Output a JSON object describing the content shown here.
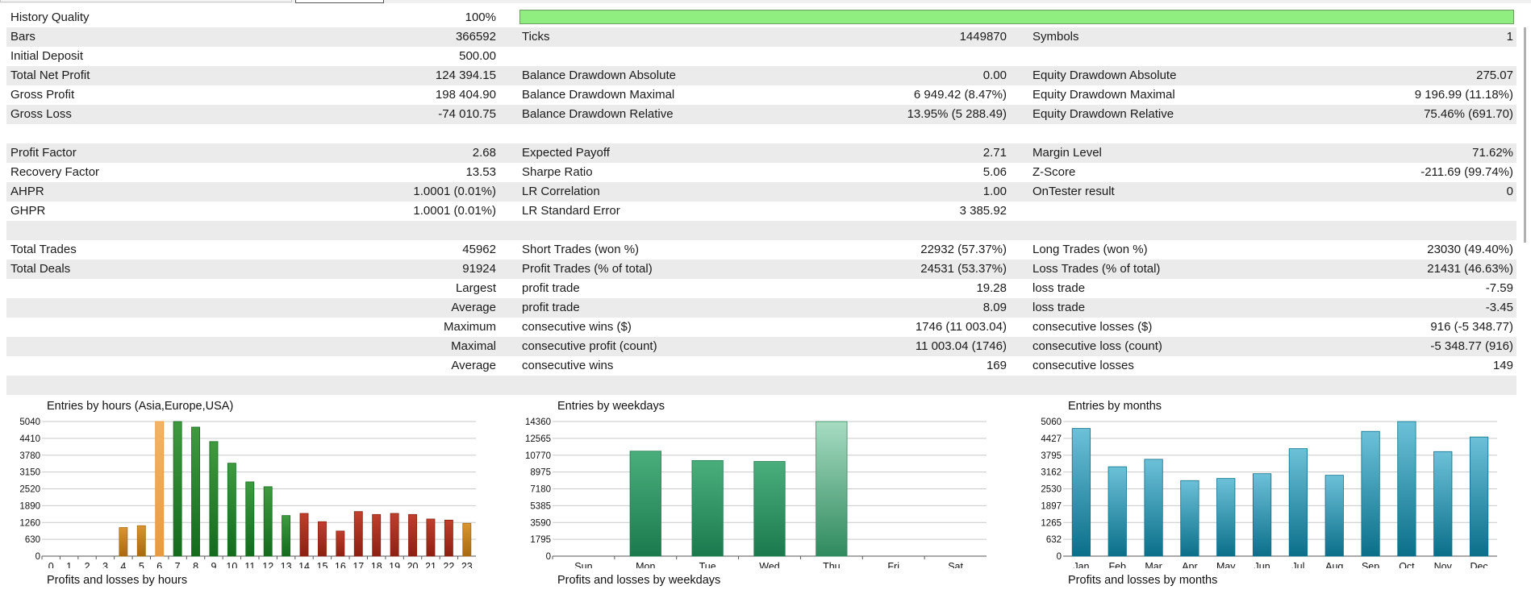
{
  "rows": [
    {
      "cells": [
        "History Quality",
        "100%",
        "",
        "",
        "",
        ""
      ],
      "quality_bar": true,
      "alt": false
    },
    {
      "cells": [
        "Bars",
        "366592",
        "Ticks",
        "1449870",
        "Symbols",
        "1"
      ],
      "alt": true
    },
    {
      "cells": [
        "Initial Deposit",
        "500.00",
        "",
        "",
        "",
        ""
      ],
      "alt": false
    },
    {
      "cells": [
        "Total Net Profit",
        "124 394.15",
        "Balance Drawdown Absolute",
        "0.00",
        "Equity Drawdown Absolute",
        "275.07"
      ],
      "alt": true
    },
    {
      "cells": [
        "Gross Profit",
        "198 404.90",
        "Balance Drawdown Maximal",
        "6 949.42 (8.47%)",
        "Equity Drawdown Maximal",
        "9 196.99 (11.18%)"
      ],
      "alt": false
    },
    {
      "cells": [
        "Gross Loss",
        "-74 010.75",
        "Balance Drawdown Relative",
        "13.95% (5 288.49)",
        "Equity Drawdown Relative",
        "75.46% (691.70)"
      ],
      "alt": true
    },
    {
      "cells": [
        "",
        "",
        "",
        "",
        "",
        ""
      ],
      "alt": false
    },
    {
      "cells": [
        "Profit Factor",
        "2.68",
        "Expected Payoff",
        "2.71",
        "Margin Level",
        "71.62%"
      ],
      "alt": true
    },
    {
      "cells": [
        "Recovery Factor",
        "13.53",
        "Sharpe Ratio",
        "5.06",
        "Z-Score",
        "-211.69 (99.74%)"
      ],
      "alt": false
    },
    {
      "cells": [
        "AHPR",
        "1.0001 (0.01%)",
        "LR Correlation",
        "1.00",
        "OnTester result",
        "0"
      ],
      "alt": true
    },
    {
      "cells": [
        "GHPR",
        "1.0001 (0.01%)",
        "LR Standard Error",
        "3 385.92",
        "",
        ""
      ],
      "alt": false
    },
    {
      "cells": [
        "",
        "",
        "",
        "",
        "",
        ""
      ],
      "alt": true
    },
    {
      "cells": [
        "Total Trades",
        "45962",
        "Short Trades (won %)",
        "22932 (57.37%)",
        "Long Trades (won %)",
        "23030 (49.40%)"
      ],
      "alt": false
    },
    {
      "cells": [
        "Total Deals",
        "91924",
        "Profit Trades (% of total)",
        "24531 (53.37%)",
        "Loss Trades (% of total)",
        "21431 (46.63%)"
      ],
      "alt": true
    },
    {
      "cells": [
        "",
        "Largest",
        "profit trade",
        "19.28",
        "loss trade",
        "-7.59"
      ],
      "alt": false
    },
    {
      "cells": [
        "",
        "Average",
        "profit trade",
        "8.09",
        "loss trade",
        "-3.45"
      ],
      "alt": true
    },
    {
      "cells": [
        "",
        "Maximum",
        "consecutive wins ($)",
        "1746 (11 003.04)",
        "consecutive losses ($)",
        "916 (-5 348.77)"
      ],
      "alt": false
    },
    {
      "cells": [
        "",
        "Maximal",
        "consecutive profit (count)",
        "11 003.04 (1746)",
        "consecutive loss (count)",
        "-5 348.77 (916)"
      ],
      "alt": true
    },
    {
      "cells": [
        "",
        "Average",
        "consecutive wins",
        "169",
        "consecutive losses",
        "149"
      ],
      "alt": false
    },
    {
      "cells": [
        "",
        "",
        "",
        "",
        "",
        ""
      ],
      "alt": true
    }
  ],
  "chart_data": [
    {
      "type": "bar",
      "title": "Entries by hours (Asia,Europe,USA)",
      "categories": [
        "0",
        "1",
        "2",
        "3",
        "4",
        "5",
        "6",
        "7",
        "8",
        "9",
        "10",
        "11",
        "12",
        "13",
        "14",
        "15",
        "16",
        "17",
        "18",
        "19",
        "20",
        "21",
        "22",
        "23"
      ],
      "values": [
        0,
        0,
        0,
        0,
        1070,
        1140,
        5040,
        5040,
        4830,
        4290,
        3480,
        2780,
        2600,
        1520,
        1600,
        1290,
        940,
        1670,
        1560,
        1600,
        1560,
        1390,
        1350,
        1230
      ],
      "yticks": [
        "5040",
        "4410",
        "3780",
        "3150",
        "2520",
        "1890",
        "1260",
        "630",
        "0"
      ],
      "ylim": [
        0,
        5040
      ],
      "bar_colors": [
        "#d89530",
        "#d89530",
        "#d89530",
        "#d89530",
        "#d89530",
        "#d89530",
        "#f3b466",
        "#3f9a3f",
        "#3f9a3f",
        "#3f9a3f",
        "#3f9a3f",
        "#3f9a3f",
        "#3f9a3f",
        "#3f9a3f",
        "#bf3f2c",
        "#bf3f2c",
        "#bf3f2c",
        "#bf3f2c",
        "#bf3f2c",
        "#bf3f2c",
        "#bf3f2c",
        "#bf3f2c",
        "#bf3f2c",
        "#d89530"
      ],
      "bar_base_colors": [
        "#a86a10",
        "#a86a10",
        "#a86a10",
        "#a86a10",
        "#a86a10",
        "#a86a10",
        "#e89a40",
        "#136b1c",
        "#136b1c",
        "#136b1c",
        "#136b1c",
        "#136b1c",
        "#136b1c",
        "#136b1c",
        "#8c2012",
        "#8c2012",
        "#8c2012",
        "#8c2012",
        "#8c2012",
        "#8c2012",
        "#8c2012",
        "#8c2012",
        "#8c2012",
        "#a86a10"
      ]
    },
    {
      "type": "bar",
      "title": "Entries by weekdays",
      "categories": [
        "Sun",
        "Mon",
        "Tue",
        "Wed",
        "Thu",
        "Fri",
        "Sat"
      ],
      "values": [
        0,
        11200,
        10200,
        10100,
        14360,
        0,
        0
      ],
      "yticks": [
        "14360",
        "12565",
        "10770",
        "8975",
        "7180",
        "5385",
        "3590",
        "1795",
        "0"
      ],
      "ylim": [
        0,
        14360
      ],
      "bar_colors": [
        "#4aae7c",
        "#4aae7c",
        "#4aae7c",
        "#4aae7c",
        "#a7dcc2",
        "#4aae7c",
        "#4aae7c"
      ],
      "bar_base_colors": [
        "#1b7a4d",
        "#1b7a4d",
        "#1b7a4d",
        "#1b7a4d",
        "#2f8a5e",
        "#1b7a4d",
        "#1b7a4d"
      ]
    },
    {
      "type": "bar",
      "title": "Entries by months",
      "categories": [
        "Jan",
        "Feb",
        "Mar",
        "Apr",
        "May",
        "Jun",
        "Jul",
        "Aug",
        "Sep",
        "Oct",
        "Nov",
        "Dec"
      ],
      "values": [
        4800,
        3360,
        3640,
        2840,
        2920,
        3100,
        4040,
        3040,
        4690,
        5060,
        3930,
        4480
      ],
      "yticks": [
        "5060",
        "4427",
        "3795",
        "3162",
        "2530",
        "1897",
        "1265",
        "632",
        "0"
      ],
      "ylim": [
        0,
        5060
      ],
      "bar_colors": [
        "#6cc1d8",
        "#6cc1d8",
        "#6cc1d8",
        "#6cc1d8",
        "#6cc1d8",
        "#6cc1d8",
        "#6cc1d8",
        "#6cc1d8",
        "#6cc1d8",
        "#6cc1d8",
        "#6cc1d8",
        "#6cc1d8"
      ],
      "bar_base_colors": [
        "#0b6f8a",
        "#0b6f8a",
        "#0b6f8a",
        "#0b6f8a",
        "#0b6f8a",
        "#0b6f8a",
        "#0b6f8a",
        "#0b6f8a",
        "#0b6f8a",
        "#0b6f8a",
        "#0b6f8a",
        "#0b6f8a"
      ]
    }
  ],
  "sub_titles": [
    "Profits and losses by hours",
    "Profits and losses by weekdays",
    "Profits and losses by months"
  ]
}
